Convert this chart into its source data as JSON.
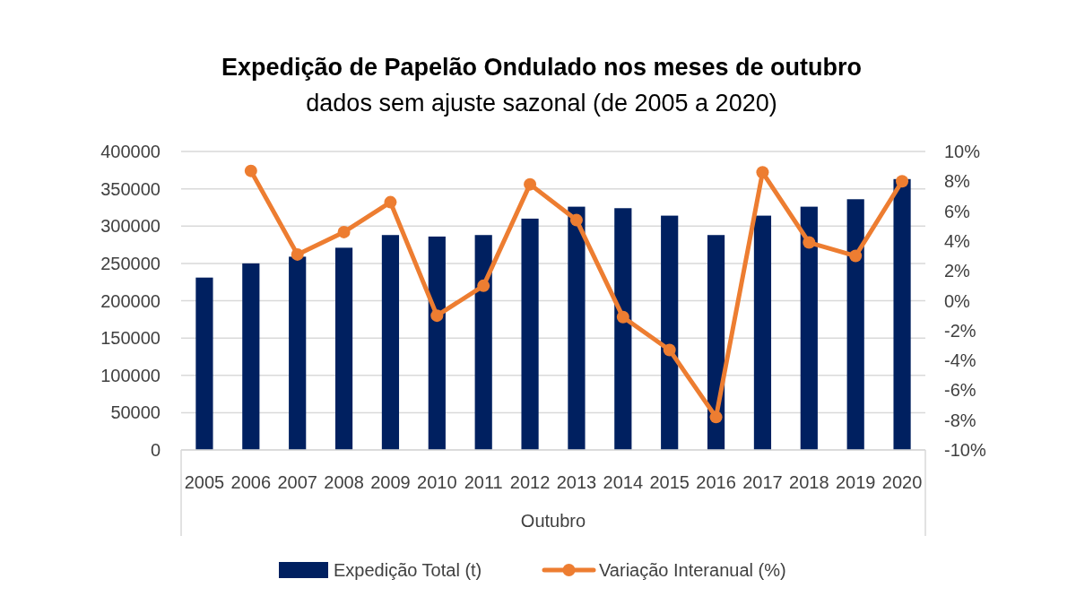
{
  "chart_data": {
    "type": "bar",
    "title": "Expedição de Papelão Ondulado nos meses de outubro",
    "subtitle": "dados sem ajuste sazonal (de 2005 a 2020)",
    "xlabel": "Outubro",
    "categories": [
      "2005",
      "2006",
      "2007",
      "2008",
      "2009",
      "2010",
      "2011",
      "2012",
      "2013",
      "2014",
      "2015",
      "2016",
      "2017",
      "2018",
      "2019",
      "2020"
    ],
    "series": [
      {
        "name": "Expedição Total (t)",
        "color": "#002060",
        "values": [
          231000,
          250000,
          259000,
          271000,
          288000,
          286000,
          288000,
          310000,
          326000,
          324000,
          314000,
          288000,
          314000,
          326000,
          336000,
          363000
        ]
      },
      {
        "name": "Variação Interanual (%)",
        "type": "line",
        "axis": "y2",
        "color": "#ed7d31",
        "values": [
          null,
          8.7,
          3.1,
          4.6,
          6.6,
          -1.0,
          1.0,
          7.8,
          5.4,
          -1.1,
          -3.3,
          -7.8,
          8.6,
          3.9,
          3.0,
          8.0
        ]
      }
    ],
    "ylim": [
      0,
      400000
    ],
    "yticks": [
      0,
      50000,
      100000,
      150000,
      200000,
      250000,
      300000,
      350000,
      400000
    ],
    "y2lim": [
      -10,
      10
    ],
    "y2ticks": [
      {
        "value": -10,
        "label": "-10%"
      },
      {
        "value": -8,
        "label": "-8%"
      },
      {
        "value": -6,
        "label": "-6%"
      },
      {
        "value": -4,
        "label": "-4%"
      },
      {
        "value": -2,
        "label": "-2%"
      },
      {
        "value": 0,
        "label": "0%"
      },
      {
        "value": 2,
        "label": "2%"
      },
      {
        "value": 4,
        "label": "4%"
      },
      {
        "value": 6,
        "label": "6%"
      },
      {
        "value": 8,
        "label": "8%"
      },
      {
        "value": 10,
        "label": "10%"
      }
    ],
    "grid": "y",
    "legend": "bottom",
    "marker": "circle",
    "line_style": "solid"
  }
}
